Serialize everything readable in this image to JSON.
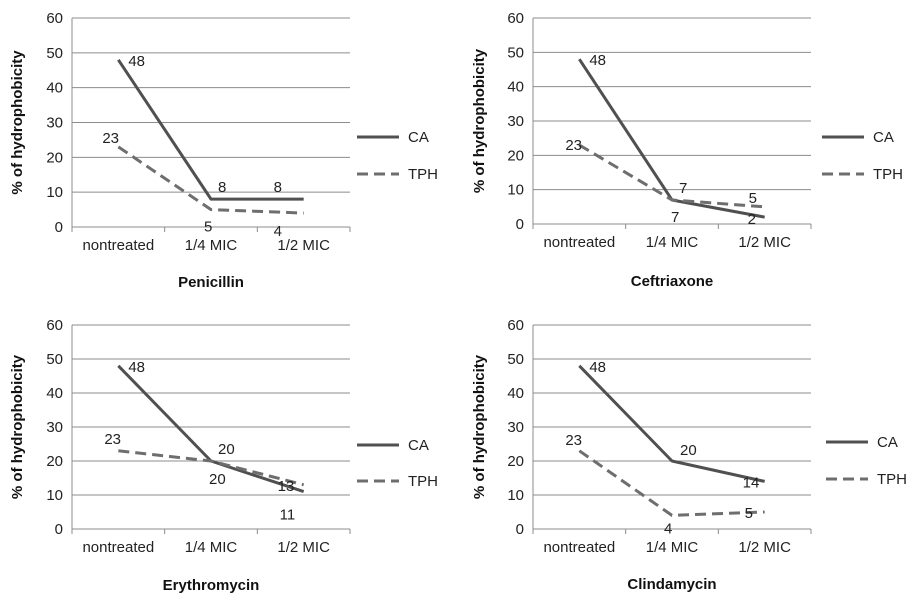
{
  "chart_data": [
    {
      "type": "line",
      "title": "Penicillin",
      "ylabel": "% of hydrophobicity",
      "categories": [
        "nontreated",
        "1/4 MIC",
        "1/2 MIC"
      ],
      "ylim": [
        0,
        60
      ],
      "yticks": [
        0,
        10,
        20,
        30,
        40,
        50,
        60
      ],
      "grid": true,
      "legend_position": "right",
      "series": [
        {
          "name": "CA",
          "values": [
            48,
            8,
            8
          ],
          "color": "#505050",
          "dash": "solid",
          "labels": [
            "48",
            "8",
            "8"
          ]
        },
        {
          "name": "TPH",
          "values": [
            23,
            5,
            4
          ],
          "color": "#6e6e6e",
          "dash": "dashed",
          "labels": [
            "23",
            "5",
            "4"
          ]
        }
      ]
    },
    {
      "type": "line",
      "title": "Ceftriaxone",
      "ylabel": "% of hydrophobicity",
      "categories": [
        "nontreated",
        "1/4 MIC",
        "1/2 MIC"
      ],
      "ylim": [
        0,
        60
      ],
      "yticks": [
        0,
        10,
        20,
        30,
        40,
        50,
        60
      ],
      "grid": true,
      "legend_position": "right",
      "series": [
        {
          "name": "CA",
          "values": [
            48,
            7,
            2
          ],
          "color": "#505050",
          "dash": "solid",
          "labels": [
            "48",
            "7",
            "2"
          ]
        },
        {
          "name": "TPH",
          "values": [
            23,
            7,
            5
          ],
          "color": "#6e6e6e",
          "dash": "dashed",
          "labels": [
            "23",
            "7",
            "5"
          ]
        }
      ]
    },
    {
      "type": "line",
      "title": "Erythromycin",
      "ylabel": "% of hydrophobicity",
      "categories": [
        "nontreated",
        "1/4 MIC",
        "1/2 MIC"
      ],
      "ylim": [
        0,
        60
      ],
      "yticks": [
        0,
        10,
        20,
        30,
        40,
        50,
        60
      ],
      "grid": true,
      "legend_position": "right",
      "series": [
        {
          "name": "CA",
          "values": [
            48,
            20,
            11
          ],
          "color": "#505050",
          "dash": "solid",
          "labels": [
            "48",
            "20",
            "11"
          ]
        },
        {
          "name": "TPH",
          "values": [
            23,
            20,
            13
          ],
          "color": "#6e6e6e",
          "dash": "dashed",
          "labels": [
            "23",
            "20",
            "13"
          ]
        }
      ]
    },
    {
      "type": "line",
      "title": "Clindamycin",
      "ylabel": "% of hydrophobicity",
      "categories": [
        "nontreated",
        "1/4 MIC",
        "1/2 MIC"
      ],
      "ylim": [
        0,
        60
      ],
      "yticks": [
        0,
        10,
        20,
        30,
        40,
        50,
        60
      ],
      "grid": true,
      "legend_position": "right",
      "series": [
        {
          "name": "CA",
          "values": [
            48,
            20,
            14
          ],
          "color": "#505050",
          "dash": "solid",
          "labels": [
            "48",
            "20",
            "14"
          ]
        },
        {
          "name": "TPH",
          "values": [
            23,
            4,
            5
          ],
          "color": "#6e6e6e",
          "dash": "dashed",
          "labels": [
            "23",
            "4",
            "5"
          ]
        }
      ]
    }
  ]
}
